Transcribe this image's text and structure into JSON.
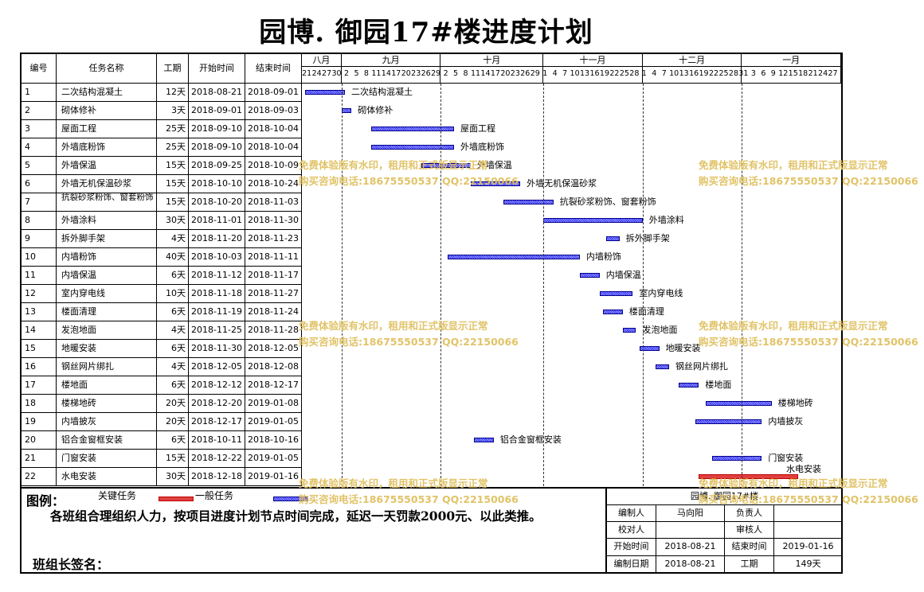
{
  "title": "园博. 御园17#楼进度计划",
  "headers": {
    "id": "编号",
    "name": "任务名称",
    "duration": "工期",
    "start": "开始时间",
    "end": "结束时间"
  },
  "months": [
    {
      "label": "八月",
      "days": [
        "21",
        "24",
        "27",
        "30"
      ]
    },
    {
      "label": "九月",
      "days": [
        "2",
        "5",
        "8",
        "11",
        "14",
        "17",
        "20",
        "23",
        "26",
        "29"
      ]
    },
    {
      "label": "十月",
      "days": [
        "2",
        "5",
        "8",
        "11",
        "14",
        "17",
        "20",
        "23",
        "26",
        "29"
      ]
    },
    {
      "label": "十一月",
      "days": [
        "1",
        "4",
        "7",
        "10",
        "13",
        "16",
        "19",
        "22",
        "25",
        "28"
      ]
    },
    {
      "label": "十二月",
      "days": [
        "1",
        "4",
        "7",
        "10",
        "13",
        "16",
        "19",
        "22",
        "25",
        "28"
      ]
    },
    {
      "label": "一月",
      "days": [
        "31",
        "3",
        "6",
        "9",
        "12",
        "15",
        "18",
        "21",
        "24",
        "27"
      ]
    }
  ],
  "timeline": {
    "start": "2018-08-20",
    "end": "2019-01-30"
  },
  "tasks": [
    {
      "id": "1",
      "name": "二次结构混凝土",
      "duration": "12天",
      "start": "2018-08-21",
      "end": "2018-09-01",
      "critical": false
    },
    {
      "id": "2",
      "name": "砌体修补",
      "duration": "3天",
      "start": "2018-09-01",
      "end": "2018-09-03",
      "critical": false
    },
    {
      "id": "3",
      "name": "屋面工程",
      "duration": "25天",
      "start": "2018-09-10",
      "end": "2018-10-04",
      "critical": false
    },
    {
      "id": "4",
      "name": "外墙底粉饰",
      "duration": "25天",
      "start": "2018-09-10",
      "end": "2018-10-04",
      "critical": false
    },
    {
      "id": "5",
      "name": "外墙保温",
      "duration": "15天",
      "start": "2018-09-25",
      "end": "2018-10-09",
      "critical": false
    },
    {
      "id": "6",
      "name": "外墙无机保温砂浆",
      "duration": "15天",
      "start": "2018-10-10",
      "end": "2018-10-24",
      "critical": false
    },
    {
      "id": "7",
      "name": "抗裂砂浆粉饰、窗套粉饰",
      "duration": "15天",
      "start": "2018-10-20",
      "end": "2018-11-03",
      "critical": false
    },
    {
      "id": "8",
      "name": "外墙涂料",
      "duration": "30天",
      "start": "2018-11-01",
      "end": "2018-11-30",
      "critical": false
    },
    {
      "id": "9",
      "name": "拆外脚手架",
      "duration": "4天",
      "start": "2018-11-20",
      "end": "2018-11-23",
      "critical": false
    },
    {
      "id": "10",
      "name": "内墙粉饰",
      "duration": "40天",
      "start": "2018-10-03",
      "end": "2018-11-11",
      "critical": false
    },
    {
      "id": "11",
      "name": "内墙保温",
      "duration": "6天",
      "start": "2018-11-12",
      "end": "2018-11-17",
      "critical": false
    },
    {
      "id": "12",
      "name": "室内穿电线",
      "duration": "10天",
      "start": "2018-11-18",
      "end": "2018-11-27",
      "critical": false
    },
    {
      "id": "13",
      "name": "楼面清理",
      "duration": "6天",
      "start": "2018-11-19",
      "end": "2018-11-24",
      "critical": false
    },
    {
      "id": "14",
      "name": "发泡地面",
      "duration": "4天",
      "start": "2018-11-25",
      "end": "2018-11-28",
      "critical": false
    },
    {
      "id": "15",
      "name": "地暖安装",
      "duration": "6天",
      "start": "2018-11-30",
      "end": "2018-12-05",
      "critical": false
    },
    {
      "id": "16",
      "name": "钢丝网片绑扎",
      "duration": "4天",
      "start": "2018-12-05",
      "end": "2018-12-08",
      "critical": false
    },
    {
      "id": "17",
      "name": "楼地面",
      "duration": "6天",
      "start": "2018-12-12",
      "end": "2018-12-17",
      "critical": false
    },
    {
      "id": "18",
      "name": "楼梯地砖",
      "duration": "20天",
      "start": "2018-12-20",
      "end": "2019-01-08",
      "critical": false
    },
    {
      "id": "19",
      "name": "内墙披灰",
      "duration": "20天",
      "start": "2018-12-17",
      "end": "2019-01-05",
      "critical": false
    },
    {
      "id": "20",
      "name": "铝合金窗框安装",
      "duration": "6天",
      "start": "2018-10-11",
      "end": "2018-10-16",
      "critical": false
    },
    {
      "id": "21",
      "name": "门窗安装",
      "duration": "15天",
      "start": "2018-12-22",
      "end": "2019-01-05",
      "critical": false
    },
    {
      "id": "22",
      "name": "水电安装",
      "duration": "30天",
      "start": "2018-12-18",
      "end": "2019-01-16",
      "critical": true
    }
  ],
  "legend": {
    "title": "图例：",
    "critical_label": "关键任务",
    "normal_label": "一般任务",
    "note": "各班组合理组织人力，按项目进度计划节点时间完成，延迟一天罚款2000元、以此类推。",
    "sign_label": "班组长签名："
  },
  "info": {
    "project": "园博. 御园17#楼",
    "editor_label": "编制人",
    "editor": "马向阳",
    "responsible_label": "负责人",
    "responsible": "",
    "checker_label": "校对人",
    "checker": "",
    "reviewer_label": "审核人",
    "reviewer": "",
    "start_label": "开始时间",
    "start": "2018-08-21",
    "end_label": "结束时间",
    "end": "2019-01-16",
    "date_label": "编制日期",
    "date": "2018-08-21",
    "duration_label": "工期",
    "duration": "149天"
  },
  "watermark": {
    "line1": "免费体验版有水印，租用和正式版显示正常",
    "line2": "购买咨询电话:18675550537 QQ:22150066"
  },
  "colors": {
    "normal_bar": "#3333ff",
    "critical_bar": "#e04040",
    "watermark": "#e0c060"
  }
}
